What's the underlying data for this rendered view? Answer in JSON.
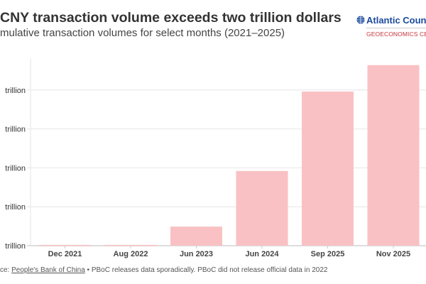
{
  "header": {
    "title": "CNY transaction volume exceeds two trillion dollars",
    "subtitle": "mulative transaction volumes for select months (2021–2025)"
  },
  "logo": {
    "name": "Atlantic Counc",
    "sub": "GEOECONOMICS CEN",
    "icon": "globe-icon",
    "name_color": "#1a4a9c",
    "sub_color": "#c8343b"
  },
  "footer": {
    "source_prefix": "ce: ",
    "source_link": "People's Bank of China",
    "note": " • PBoC releases data sporadically. PBoC did not release official data in 2022"
  },
  "chart_data": {
    "type": "bar",
    "categories": [
      "Dec 2021",
      "Aug 2022",
      "Jun 2023",
      "Jun 2024",
      "Sep 2025",
      "Nov 2025"
    ],
    "values": [
      0.01,
      0.01,
      0.245,
      0.96,
      1.98,
      2.32
    ],
    "unit": "trillion",
    "ylim": [
      0,
      2.5
    ],
    "yticks": [
      0,
      0.5,
      1,
      1.5,
      2
    ],
    "ytick_labels": [
      "trillion",
      "trillion",
      "trillion",
      "trillion",
      "trillion"
    ],
    "grid": true,
    "bar_color": "#f9c1c3",
    "grid_color": "#e6e6e6"
  }
}
